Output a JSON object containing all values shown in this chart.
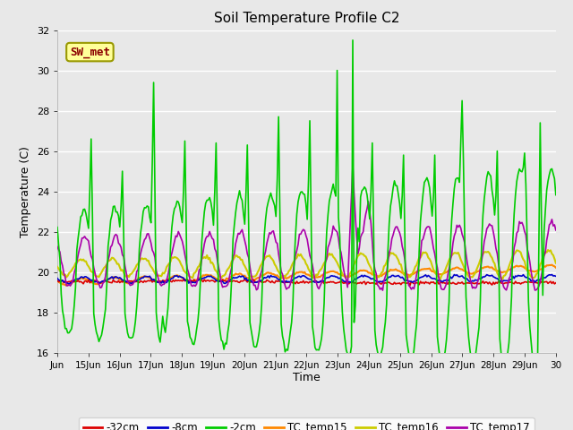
{
  "title": "Soil Temperature Profile C2",
  "xlabel": "Time",
  "ylabel": "Temperature (C)",
  "ylim": [
    16,
    32
  ],
  "background_color": "#e8e8e8",
  "annotation_text": "SW_met",
  "annotation_color": "#8B0000",
  "annotation_bg": "#FFFF99",
  "annotation_border": "#999900",
  "x_tick_labels": [
    "Jun",
    "15Jun",
    "16Jun",
    "17Jun",
    "18Jun",
    "19Jun",
    "20Jun",
    "21Jun",
    "22Jun",
    "23Jun",
    "24Jun",
    "25Jun",
    "26Jun",
    "27Jun",
    "28Jun",
    "29Jun",
    "30"
  ],
  "legend_labels": [
    "-32cm",
    "-8cm",
    "-2cm",
    "TC_temp15",
    "TC_temp16",
    "TC_temp17"
  ],
  "legend_colors": [
    "#dd0000",
    "#0000cc",
    "#00cc00",
    "#ff8800",
    "#cccc00",
    "#aa00aa"
  ],
  "line_colors": {
    "neg32cm": "#dd0000",
    "neg8cm": "#0000cc",
    "neg2cm": "#00cc00",
    "TC_temp15": "#ff8800",
    "TC_temp16": "#cccc00",
    "TC_temp17": "#aa00aa"
  },
  "yticks": [
    16,
    18,
    20,
    22,
    24,
    26,
    28,
    30,
    32
  ],
  "figsize": [
    6.4,
    4.8
  ],
  "dpi": 100
}
